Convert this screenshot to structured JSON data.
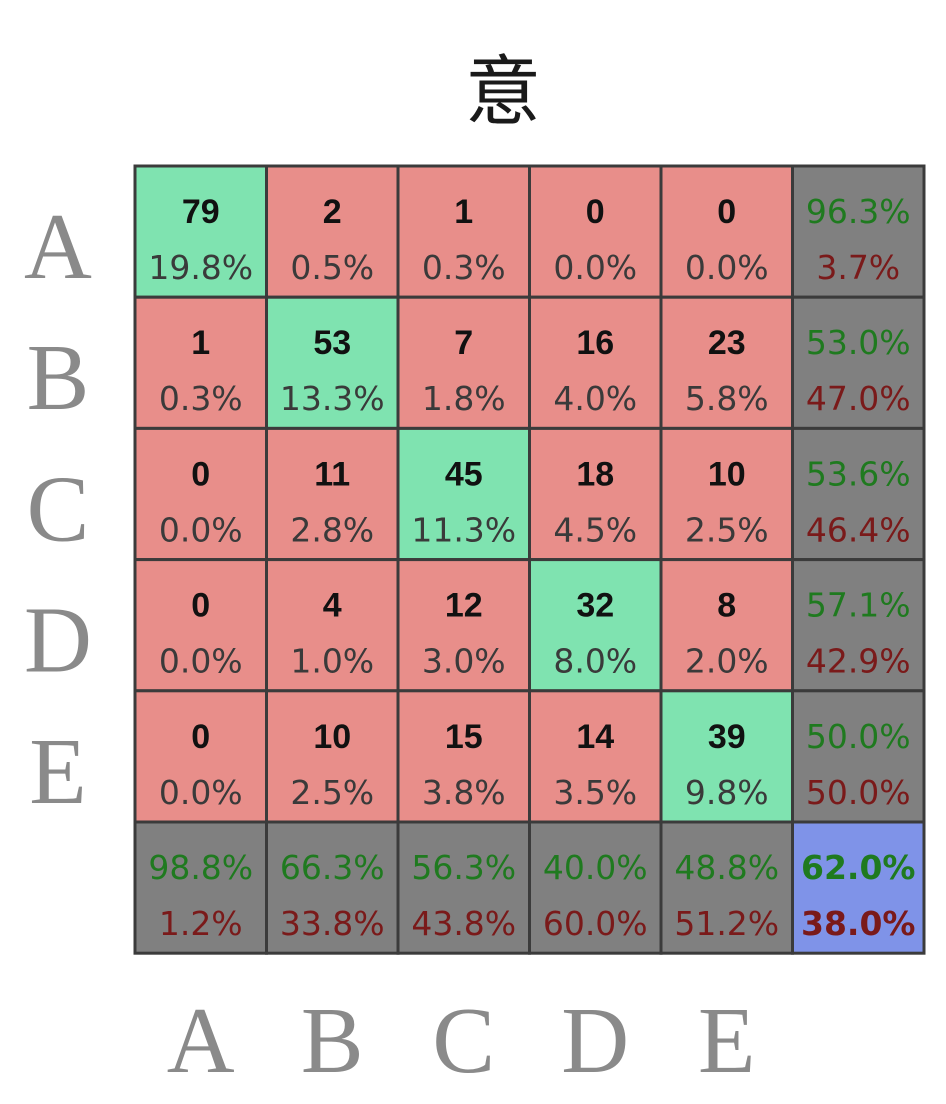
{
  "chart_data": {
    "type": "heatmap",
    "title": "意",
    "row_labels": [
      "A",
      "B",
      "C",
      "D",
      "E"
    ],
    "col_labels": [
      "A",
      "B",
      "C",
      "D",
      "E"
    ],
    "counts": [
      [
        79,
        2,
        1,
        0,
        0
      ],
      [
        1,
        53,
        7,
        16,
        23
      ],
      [
        0,
        11,
        45,
        18,
        10
      ],
      [
        0,
        4,
        12,
        32,
        8
      ],
      [
        0,
        10,
        15,
        14,
        39
      ]
    ],
    "percents": [
      [
        "19.8%",
        "0.5%",
        "0.3%",
        "0.0%",
        "0.0%"
      ],
      [
        "0.3%",
        "13.3%",
        "1.8%",
        "4.0%",
        "5.8%"
      ],
      [
        "0.0%",
        "2.8%",
        "11.3%",
        "4.5%",
        "2.5%"
      ],
      [
        "0.0%",
        "1.0%",
        "3.0%",
        "8.0%",
        "2.0%"
      ],
      [
        "0.0%",
        "2.5%",
        "3.8%",
        "3.5%",
        "9.8%"
      ]
    ],
    "row_summary": [
      {
        "correct": "96.3%",
        "incorrect": "3.7%"
      },
      {
        "correct": "53.0%",
        "incorrect": "47.0%"
      },
      {
        "correct": "53.6%",
        "incorrect": "46.4%"
      },
      {
        "correct": "57.1%",
        "incorrect": "42.9%"
      },
      {
        "correct": "50.0%",
        "incorrect": "50.0%"
      }
    ],
    "col_summary": [
      {
        "correct": "98.8%",
        "incorrect": "1.2%"
      },
      {
        "correct": "66.3%",
        "incorrect": "33.8%"
      },
      {
        "correct": "56.3%",
        "incorrect": "43.8%"
      },
      {
        "correct": "40.0%",
        "incorrect": "60.0%"
      },
      {
        "correct": "48.8%",
        "incorrect": "51.2%"
      }
    ],
    "overall": {
      "correct": "62.0%",
      "incorrect": "38.0%"
    },
    "colors": {
      "diagonal": "#7fe3b0",
      "off_diagonal": "#e88e8a",
      "summary": "#808080",
      "overall": "#7f93e8",
      "border": "#3b3b3b",
      "correct_text": "#1f7a1f",
      "incorrect_text": "#7a1a1a"
    }
  }
}
